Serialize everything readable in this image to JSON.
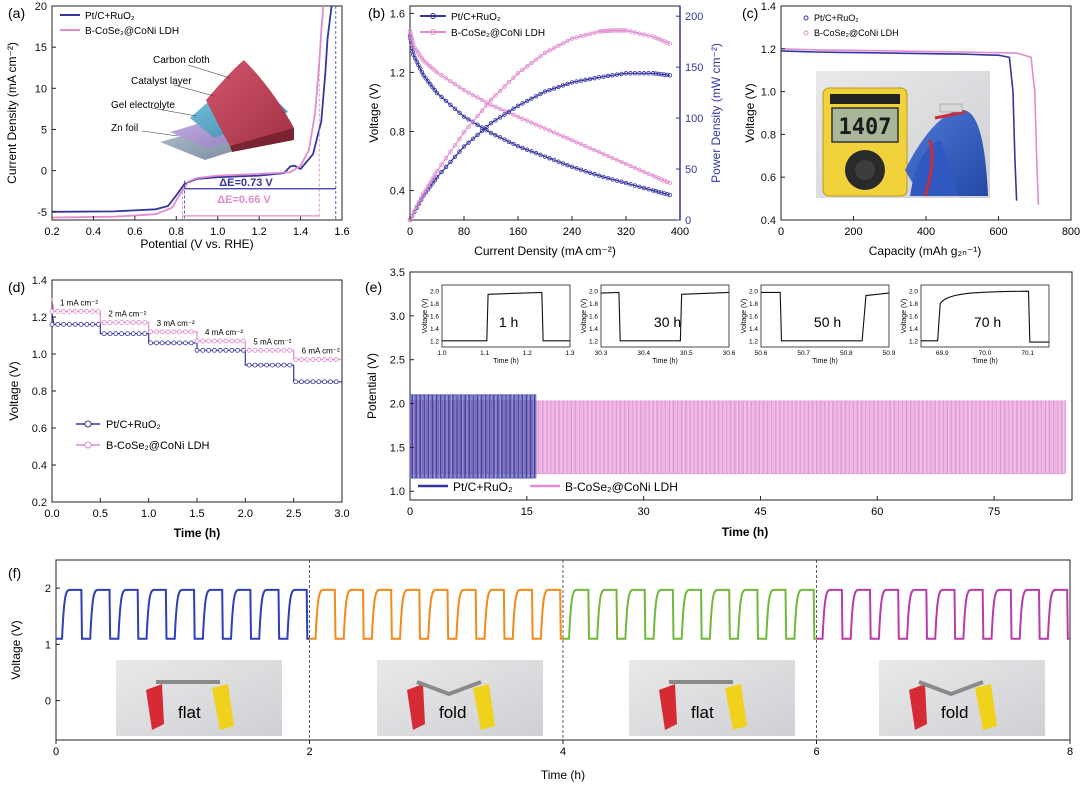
{
  "figure": {
    "colors": {
      "blue": "#3535a0",
      "pink": "#e08ccf",
      "grid_dash": "#3a3aa8",
      "pink_dash": "#d07fc4",
      "f_blue": "#2f3fb8",
      "f_orange": "#f28a1c",
      "f_green": "#72b83c",
      "f_magenta": "#b83ca8"
    }
  },
  "chart_data": [
    {
      "id": "a",
      "panel_label": "(a)",
      "type": "line",
      "xlabel": "Potential (V vs. RHE)",
      "ylabel": "Current Density (mA cm⁻²)",
      "xlim": [
        0.2,
        1.6
      ],
      "ylim": [
        -6,
        20
      ],
      "xticks": [
        "0.2",
        "0.4",
        "0.6",
        "0.8",
        "1.0",
        "1.2",
        "1.4",
        "1.6"
      ],
      "yticks": [
        "-5",
        "0",
        "5",
        "10",
        "15",
        "20"
      ],
      "series": [
        {
          "name": "Pt/C+RuO₂",
          "color": "#3535a0",
          "x": [
            0.2,
            0.5,
            0.7,
            0.76,
            0.8,
            0.84,
            0.9,
            1.0,
            1.2,
            1.32,
            1.35,
            1.37,
            1.4,
            1.46,
            1.5,
            1.52,
            1.53,
            1.55
          ],
          "y": [
            -5.0,
            -4.95,
            -4.7,
            -4.3,
            -3.0,
            -1.6,
            -1.0,
            -0.8,
            -0.6,
            -0.3,
            0.5,
            0.6,
            0.2,
            2.0,
            6.0,
            12.0,
            16.0,
            20.0
          ]
        },
        {
          "name": "B-CoSe₂@CoNi LDH",
          "color": "#e08ccf",
          "x": [
            0.2,
            0.5,
            0.7,
            0.78,
            0.82,
            0.86,
            0.9,
            1.0,
            1.2,
            1.35,
            1.4,
            1.44,
            1.47,
            1.49,
            1.5,
            1.51
          ],
          "y": [
            -5.7,
            -5.6,
            -5.3,
            -4.5,
            -2.8,
            -1.3,
            -0.9,
            -0.6,
            -0.4,
            -0.2,
            0.6,
            2.5,
            7.0,
            13.0,
            17.0,
            20.0
          ]
        }
      ],
      "annotations": [
        "ΔE=0.73 V",
        "ΔE=0.66 V"
      ],
      "inset_labels": [
        "Carbon cloth",
        "Catalyst layer",
        "Gel electrolyte",
        "Zn foil"
      ]
    },
    {
      "id": "b",
      "panel_label": "(b)",
      "type": "line",
      "xlabel": "Current Density (mA cm⁻²)",
      "ylabel": "Voltage (V)",
      "ylabel_right": "Power Density (mW cm⁻²)",
      "xlim": [
        0,
        400
      ],
      "ylim": [
        0.2,
        1.65
      ],
      "ylim_right": [
        0,
        210
      ],
      "xticks": [
        "0",
        "80",
        "160",
        "240",
        "320",
        "400"
      ],
      "yticks": [
        "0.4",
        "0.8",
        "1.2",
        "1.6"
      ],
      "yticks_right": [
        "0",
        "50",
        "100",
        "150",
        "200"
      ],
      "series": [
        {
          "name": "Pt/C+RuO₂",
          "color": "#3535a0",
          "axis": "left",
          "x": [
            0,
            5,
            20,
            40,
            80,
            120,
            160,
            200,
            240,
            280,
            320,
            360,
            385
          ],
          "y": [
            1.45,
            1.32,
            1.18,
            1.06,
            0.9,
            0.79,
            0.7,
            0.63,
            0.56,
            0.5,
            0.45,
            0.4,
            0.37
          ]
        },
        {
          "name": "B-CoSe₂@CoNi LDH",
          "color": "#e08ccf",
          "axis": "left",
          "x": [
            0,
            5,
            20,
            40,
            80,
            120,
            160,
            200,
            240,
            280,
            320,
            360,
            385
          ],
          "y": [
            1.48,
            1.38,
            1.28,
            1.2,
            1.08,
            0.98,
            0.9,
            0.82,
            0.74,
            0.66,
            0.58,
            0.5,
            0.45
          ]
        },
        {
          "name": "Pt/C+RuO₂ power",
          "color": "#3535a0",
          "axis": "right",
          "x": [
            0,
            20,
            40,
            80,
            120,
            160,
            200,
            240,
            280,
            320,
            360,
            385
          ],
          "y": [
            0,
            24,
            42,
            72,
            95,
            112,
            126,
            135,
            140,
            144,
            144,
            142
          ]
        },
        {
          "name": "B-CoSe₂@CoNi LDH power",
          "color": "#e08ccf",
          "axis": "right",
          "x": [
            0,
            20,
            40,
            80,
            120,
            160,
            200,
            240,
            280,
            300,
            320,
            360,
            385
          ],
          "y": [
            0,
            26,
            48,
            86,
            118,
            144,
            164,
            178,
            185,
            186,
            186,
            180,
            173
          ]
        }
      ]
    },
    {
      "id": "c",
      "panel_label": "(c)",
      "type": "line",
      "xlabel": "Capacity (mAh g₂ₙ⁻¹)",
      "ylabel": "Voltage (V)",
      "xlim": [
        0,
        800
      ],
      "ylim": [
        0.4,
        1.4
      ],
      "xticks": [
        "0",
        "200",
        "400",
        "600",
        "800"
      ],
      "yticks": [
        "0.4",
        "0.6",
        "0.8",
        "1.0",
        "1.2",
        "1.4"
      ],
      "series": [
        {
          "name": "Pt/C+RuO₂",
          "color": "#3535a0",
          "x": [
            0,
            100,
            300,
            500,
            600,
            630,
            640,
            645,
            650
          ],
          "y": [
            1.19,
            1.185,
            1.18,
            1.175,
            1.17,
            1.16,
            1.0,
            0.7,
            0.49
          ]
        },
        {
          "name": "B-CoSe₂@CoNi LDH",
          "color": "#e08ccf",
          "x": [
            0,
            100,
            300,
            500,
            650,
            690,
            700,
            705,
            710
          ],
          "y": [
            1.2,
            1.195,
            1.19,
            1.185,
            1.18,
            1.16,
            1.0,
            0.7,
            0.47
          ]
        }
      ],
      "inset_text": "1407"
    },
    {
      "id": "d",
      "panel_label": "(d)",
      "type": "line",
      "xlabel": "Time (h)",
      "ylabel": "Voltage (V)",
      "xlim": [
        0,
        3.0
      ],
      "ylim": [
        0.2,
        1.4
      ],
      "xticks": [
        "0.0",
        "0.5",
        "1.0",
        "1.5",
        "2.0",
        "2.5",
        "3.0"
      ],
      "yticks": [
        "0.2",
        "0.4",
        "0.6",
        "0.8",
        "1.0",
        "1.2",
        "1.4"
      ],
      "steps": [
        "1 mA cm⁻²",
        "2 mA cm⁻²",
        "3 mA cm⁻²",
        "4 mA cm⁻²",
        "5 mA cm⁻²",
        "6 mA cm⁻²"
      ],
      "series": [
        {
          "name": "Pt/C+RuO₂",
          "color": "#3535a0",
          "step_values": [
            1.16,
            1.11,
            1.06,
            1.02,
            0.94,
            0.85
          ]
        },
        {
          "name": "B-CoSe₂@CoNi LDH",
          "color": "#e08ccf",
          "step_values": [
            1.23,
            1.17,
            1.12,
            1.07,
            1.02,
            0.97
          ]
        }
      ],
      "legend": [
        "Pt/C+RuO₂",
        "B-CoSe₂@CoNi LDH"
      ]
    },
    {
      "id": "e",
      "panel_label": "(e)",
      "type": "line",
      "xlabel": "Time (h)",
      "ylabel": "Potential (V)",
      "xlim": [
        0,
        85
      ],
      "ylim": [
        0.9,
        3.5
      ],
      "xticks": [
        "0",
        "15",
        "30",
        "45",
        "60",
        "75"
      ],
      "yticks": [
        "1.0",
        "1.5",
        "2.0",
        "2.5",
        "3.0",
        "3.5"
      ],
      "series": [
        {
          "name": "Pt/C+RuO₂",
          "color": "#3535a0",
          "t_end": 16,
          "high": 2.1,
          "low": 1.15
        },
        {
          "name": "B-CoSe₂@CoNi LDH",
          "color": "#e08ccf",
          "t_end": 84,
          "high": 2.03,
          "low": 1.2
        }
      ],
      "insets": [
        {
          "label": "1 h",
          "xticks": [
            "1.0",
            "1.1",
            "1.2",
            "1.3"
          ],
          "yticks": [
            "1.2",
            "1.4",
            "1.6",
            "1.8",
            "2.0"
          ],
          "xlabel": "Time (h)",
          "ylabel": "Voltage (V)"
        },
        {
          "label": "30 h",
          "xticks": [
            "30.3",
            "30.4",
            "30.5",
            "30.6"
          ],
          "yticks": [
            "1.2",
            "1.4",
            "1.6",
            "1.8",
            "2.0"
          ],
          "xlabel": "Time (h)",
          "ylabel": "Voltage (V)"
        },
        {
          "label": "50 h",
          "xticks": [
            "50.6",
            "50.7",
            "50.8",
            "50.9"
          ],
          "yticks": [
            "1.2",
            "1.4",
            "1.6",
            "1.8",
            "2.0"
          ],
          "xlabel": "Time (h)",
          "ylabel": "Voltage (V)"
        },
        {
          "label": "70 h",
          "xticks": [
            "69.9",
            "70.0",
            "70.1"
          ],
          "yticks": [
            "1.2",
            "1.4",
            "1.6",
            "1.8",
            "2.0"
          ],
          "xlabel": "Time (h)",
          "ylabel": "Voltage (V)"
        }
      ]
    },
    {
      "id": "f",
      "panel_label": "(f)",
      "type": "line",
      "xlabel": "Time (h)",
      "ylabel": "Voltage (V)",
      "xlim": [
        0,
        8
      ],
      "ylim": [
        -0.7,
        2.5
      ],
      "xticks": [
        "0",
        "2",
        "4",
        "6",
        "8"
      ],
      "yticks": [
        "0",
        "1",
        "2"
      ],
      "segments": [
        {
          "state": "flat",
          "color": "#2f3fb8",
          "t0": 0,
          "t1": 2
        },
        {
          "state": "fold",
          "color": "#f28a1c",
          "t0": 2,
          "t1": 4
        },
        {
          "state": "flat",
          "color": "#72b83c",
          "t0": 4,
          "t1": 6
        },
        {
          "state": "fold",
          "color": "#b83ca8",
          "t0": 6,
          "t1": 8
        }
      ],
      "high": 1.97,
      "low": 1.1
    }
  ]
}
